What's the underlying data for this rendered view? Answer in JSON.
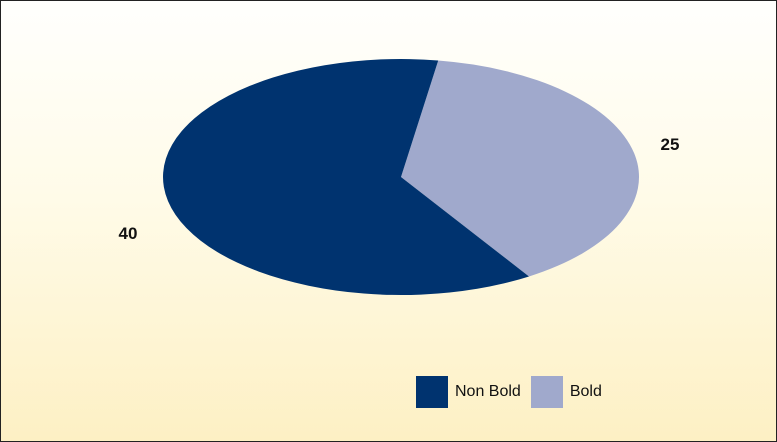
{
  "chart_data": {
    "type": "pie",
    "categories": [
      "Non Bold",
      "Bold"
    ],
    "values": [
      40,
      25
    ],
    "colors": [
      "#00336f",
      "#a0a9cc"
    ],
    "data_labels": [
      "40",
      "25"
    ],
    "legend_position": "bottom-right"
  }
}
